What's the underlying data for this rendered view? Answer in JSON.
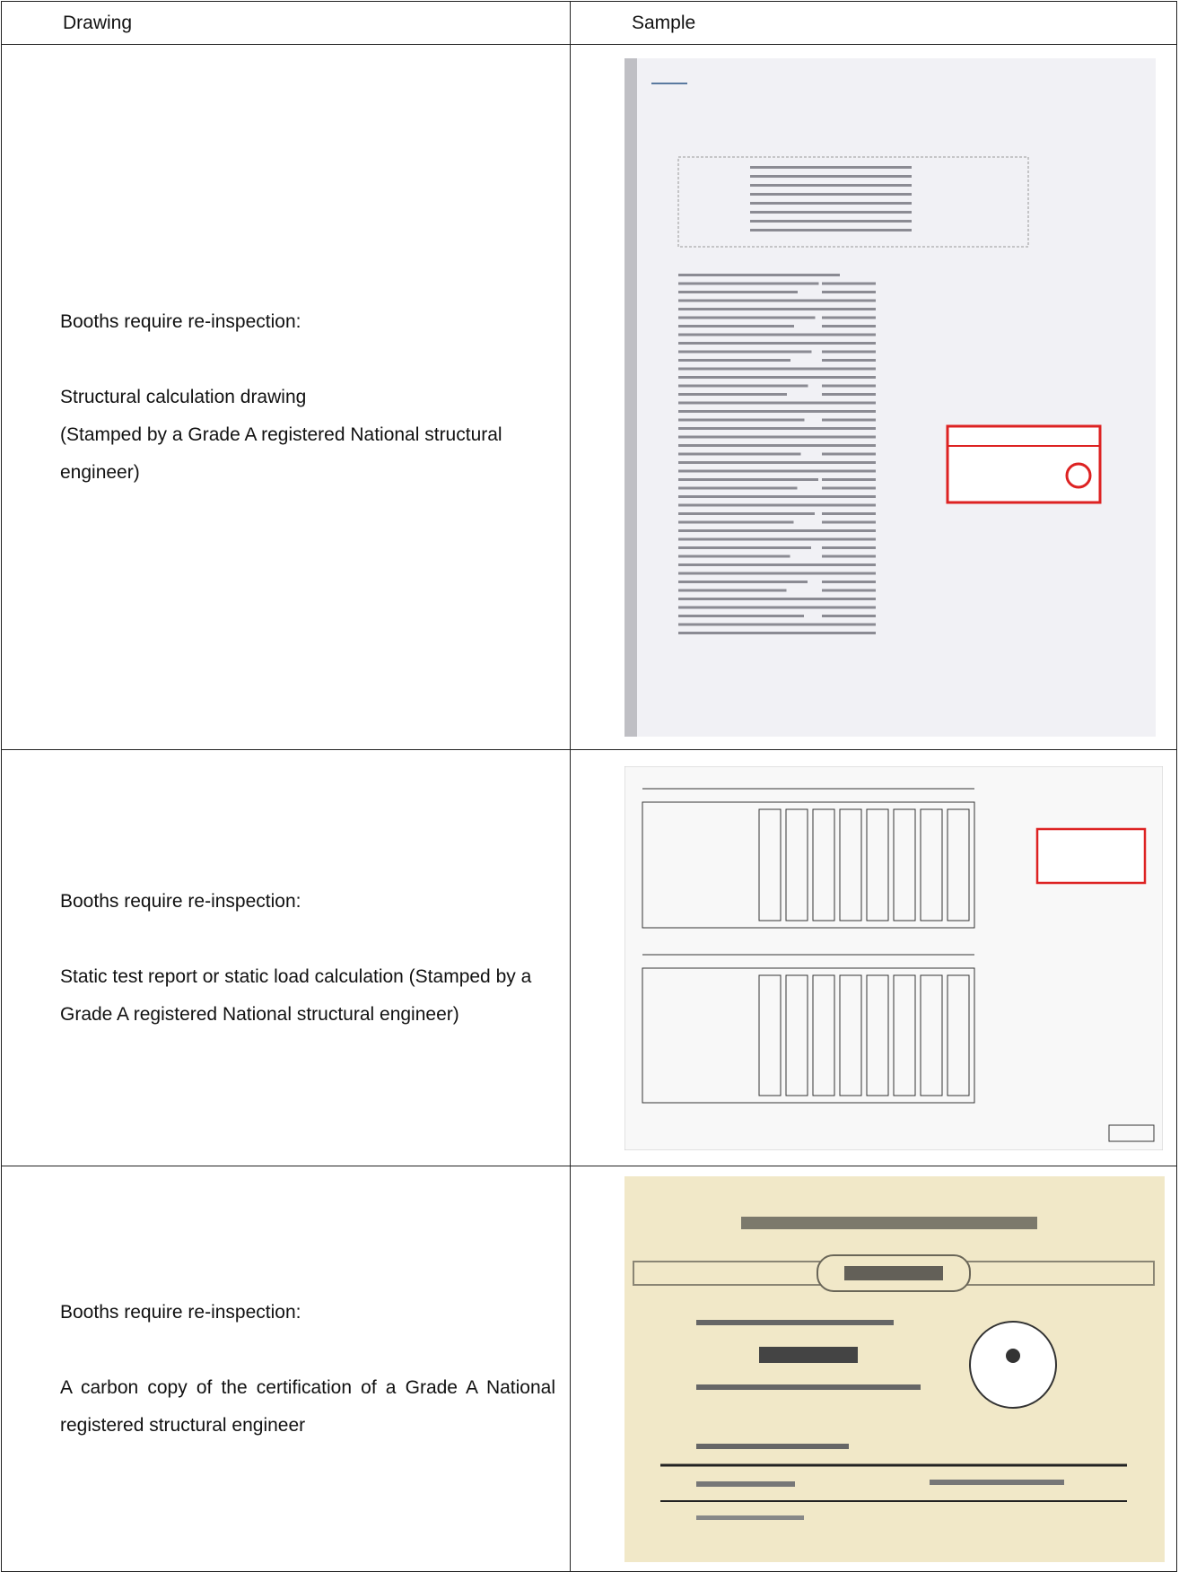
{
  "table": {
    "header": [
      "Drawing",
      "Sample"
    ],
    "rows": [
      {
        "paragraphs": [
          [
            "Booths require re-inspection:"
          ],
          [
            "Structural calculation drawing",
            "(Stamped by a Grade A registered National structural engineer)"
          ]
        ]
      },
      {
        "paragraphs": [
          [
            "Booths require re-inspection:"
          ],
          [
            "Static test report or static load calculation (Stamped by a Grade A registered National structural engineer)"
          ]
        ]
      },
      {
        "paragraphs": [
          [
            "Booths require re-inspection:"
          ],
          [
            "A carbon copy of the certification of a Grade A National registered structural engineer"
          ]
        ]
      }
    ]
  }
}
